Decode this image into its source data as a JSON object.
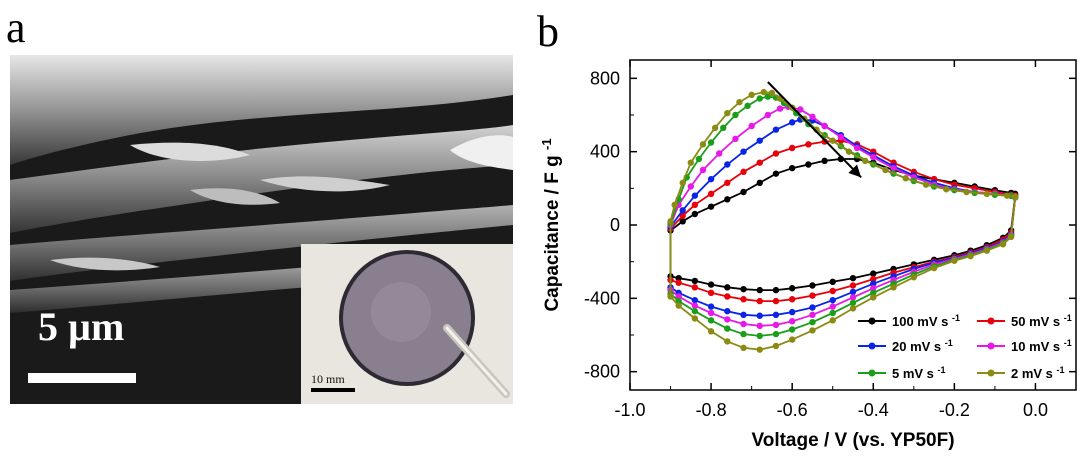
{
  "panel_a": {
    "letter": "a",
    "scale_label": "5 µm",
    "inset_scale_label": "10 mm"
  },
  "panel_b": {
    "letter": "b"
  },
  "chart_data": {
    "type": "line",
    "title": "",
    "xlabel": "Voltage / V (vs. YP50F)",
    "ylabel": "Capacitance / F g",
    "ylabel_superscript": "-1",
    "xlim": [
      -1.0,
      0.1
    ],
    "ylim": [
      -900,
      900
    ],
    "x_ticks": [
      -1.0,
      -0.8,
      -0.6,
      -0.4,
      -0.2,
      0.0
    ],
    "x_tick_labels": [
      "-1.0",
      "-0.8",
      "-0.6",
      "-0.4",
      "-0.2",
      "0.0"
    ],
    "y_ticks": [
      -800,
      -400,
      0,
      400,
      800
    ],
    "y_tick_labels": [
      "-800",
      "-400",
      "0",
      "400",
      "800"
    ],
    "grid": false,
    "legend_position": "bottom-right",
    "arrow": {
      "from": [
        -0.66,
        780
      ],
      "to": [
        -0.43,
        260
      ]
    },
    "series": [
      {
        "name": "100 mV s",
        "sup": "-1",
        "color": "#000000",
        "upper": {
          "x": [
            -0.9,
            -0.87,
            -0.84,
            -0.8,
            -0.76,
            -0.72,
            -0.68,
            -0.64,
            -0.6,
            -0.56,
            -0.52,
            -0.48,
            -0.44,
            -0.4,
            -0.35,
            -0.3,
            -0.25,
            -0.2,
            -0.15,
            -0.1,
            -0.06,
            -0.05
          ],
          "y": [
            -30,
            20,
            60,
            100,
            140,
            180,
            230,
            280,
            310,
            330,
            350,
            360,
            360,
            340,
            300,
            270,
            250,
            230,
            210,
            190,
            175,
            170
          ]
        },
        "lower": {
          "x": [
            -0.05,
            -0.06,
            -0.08,
            -0.12,
            -0.16,
            -0.2,
            -0.25,
            -0.3,
            -0.35,
            -0.4,
            -0.45,
            -0.5,
            -0.55,
            -0.6,
            -0.64,
            -0.68,
            -0.72,
            -0.76,
            -0.8,
            -0.84,
            -0.88,
            -0.9
          ],
          "y": [
            160,
            -30,
            -70,
            -110,
            -140,
            -165,
            -190,
            -215,
            -240,
            -265,
            -290,
            -310,
            -330,
            -345,
            -355,
            -355,
            -350,
            -340,
            -325,
            -305,
            -290,
            -280
          ]
        }
      },
      {
        "name": "50 mV s",
        "sup": "-1",
        "color": "#e8000b",
        "upper": {
          "x": [
            -0.9,
            -0.87,
            -0.84,
            -0.8,
            -0.76,
            -0.72,
            -0.68,
            -0.64,
            -0.6,
            -0.56,
            -0.52,
            -0.48,
            -0.44,
            -0.4,
            -0.35,
            -0.3,
            -0.25,
            -0.2,
            -0.15,
            -0.1,
            -0.06,
            -0.05
          ],
          "y": [
            -20,
            50,
            110,
            170,
            230,
            290,
            340,
            390,
            420,
            440,
            455,
            460,
            440,
            400,
            340,
            290,
            250,
            220,
            200,
            180,
            165,
            160
          ]
        },
        "lower": {
          "x": [
            -0.05,
            -0.06,
            -0.08,
            -0.12,
            -0.16,
            -0.2,
            -0.25,
            -0.3,
            -0.35,
            -0.4,
            -0.45,
            -0.5,
            -0.55,
            -0.6,
            -0.64,
            -0.68,
            -0.72,
            -0.76,
            -0.8,
            -0.84,
            -0.88,
            -0.9
          ],
          "y": [
            160,
            -40,
            -80,
            -120,
            -150,
            -175,
            -200,
            -230,
            -260,
            -295,
            -330,
            -360,
            -385,
            -405,
            -415,
            -415,
            -405,
            -390,
            -370,
            -340,
            -315,
            -300
          ]
        }
      },
      {
        "name": "20 mV s",
        "sup": "-1",
        "color": "#0a24e6",
        "upper": {
          "x": [
            -0.9,
            -0.87,
            -0.84,
            -0.8,
            -0.76,
            -0.72,
            -0.68,
            -0.64,
            -0.6,
            -0.58,
            -0.55,
            -0.52,
            -0.48,
            -0.44,
            -0.4,
            -0.35,
            -0.3,
            -0.25,
            -0.2,
            -0.15,
            -0.1,
            -0.06,
            -0.05
          ],
          "y": [
            -10,
            80,
            160,
            250,
            330,
            400,
            460,
            520,
            560,
            575,
            570,
            540,
            490,
            430,
            380,
            320,
            270,
            230,
            200,
            180,
            170,
            160,
            155
          ]
        },
        "lower": {
          "x": [
            -0.05,
            -0.06,
            -0.08,
            -0.12,
            -0.16,
            -0.2,
            -0.25,
            -0.3,
            -0.35,
            -0.4,
            -0.45,
            -0.5,
            -0.55,
            -0.6,
            -0.64,
            -0.68,
            -0.72,
            -0.76,
            -0.8,
            -0.84,
            -0.88,
            -0.9
          ],
          "y": [
            150,
            -50,
            -90,
            -125,
            -155,
            -180,
            -205,
            -240,
            -280,
            -320,
            -365,
            -410,
            -450,
            -475,
            -490,
            -495,
            -490,
            -470,
            -445,
            -410,
            -370,
            -340
          ]
        }
      },
      {
        "name": "10 mV s",
        "sup": "-1",
        "color": "#e619e6",
        "upper": {
          "x": [
            -0.9,
            -0.88,
            -0.85,
            -0.82,
            -0.78,
            -0.74,
            -0.7,
            -0.66,
            -0.63,
            -0.61,
            -0.58,
            -0.55,
            -0.52,
            -0.48,
            -0.44,
            -0.4,
            -0.35,
            -0.3,
            -0.25,
            -0.2,
            -0.15,
            -0.1,
            -0.06,
            -0.05
          ],
          "y": [
            0,
            110,
            210,
            300,
            390,
            470,
            540,
            600,
            635,
            645,
            630,
            590,
            540,
            480,
            420,
            370,
            310,
            260,
            220,
            195,
            180,
            170,
            160,
            155
          ]
        },
        "lower": {
          "x": [
            -0.05,
            -0.06,
            -0.08,
            -0.12,
            -0.16,
            -0.2,
            -0.25,
            -0.3,
            -0.35,
            -0.4,
            -0.45,
            -0.5,
            -0.55,
            -0.6,
            -0.64,
            -0.68,
            -0.72,
            -0.76,
            -0.8,
            -0.84,
            -0.88,
            -0.9
          ],
          "y": [
            150,
            -55,
            -95,
            -130,
            -160,
            -185,
            -215,
            -255,
            -300,
            -345,
            -395,
            -445,
            -490,
            -525,
            -545,
            -550,
            -540,
            -515,
            -480,
            -440,
            -390,
            -355
          ]
        }
      },
      {
        "name": "5 mV s",
        "sup": "-1",
        "color": "#1a9e1a",
        "upper": {
          "x": [
            -0.9,
            -0.88,
            -0.86,
            -0.83,
            -0.8,
            -0.77,
            -0.74,
            -0.71,
            -0.68,
            -0.66,
            -0.64,
            -0.62,
            -0.59,
            -0.56,
            -0.52,
            -0.48,
            -0.44,
            -0.4,
            -0.35,
            -0.3,
            -0.25,
            -0.2,
            -0.15,
            -0.1,
            -0.06,
            -0.05
          ],
          "y": [
            10,
            140,
            260,
            360,
            450,
            530,
            600,
            650,
            690,
            700,
            695,
            665,
            610,
            550,
            490,
            430,
            380,
            330,
            280,
            240,
            210,
            190,
            175,
            165,
            160,
            155
          ]
        },
        "lower": {
          "x": [
            -0.05,
            -0.06,
            -0.08,
            -0.12,
            -0.16,
            -0.2,
            -0.25,
            -0.3,
            -0.35,
            -0.4,
            -0.45,
            -0.5,
            -0.55,
            -0.6,
            -0.64,
            -0.68,
            -0.72,
            -0.76,
            -0.8,
            -0.84,
            -0.88,
            -0.9
          ],
          "y": [
            150,
            -60,
            -100,
            -135,
            -165,
            -190,
            -225,
            -270,
            -320,
            -370,
            -425,
            -480,
            -530,
            -570,
            -595,
            -605,
            -595,
            -565,
            -520,
            -470,
            -415,
            -375
          ]
        }
      },
      {
        "name": "2 mV s",
        "sup": "-1",
        "color": "#8b8b14",
        "upper": {
          "x": [
            -0.9,
            -0.89,
            -0.87,
            -0.85,
            -0.82,
            -0.79,
            -0.76,
            -0.73,
            -0.7,
            -0.67,
            -0.65,
            -0.63,
            -0.6,
            -0.57,
            -0.54,
            -0.5,
            -0.46,
            -0.42,
            -0.37,
            -0.32,
            -0.27,
            -0.22,
            -0.17,
            -0.12,
            -0.07,
            -0.05
          ],
          "y": [
            20,
            110,
            230,
            340,
            440,
            530,
            610,
            670,
            710,
            725,
            720,
            690,
            640,
            580,
            520,
            460,
            400,
            350,
            300,
            255,
            220,
            195,
            180,
            170,
            160,
            155
          ]
        },
        "lower": {
          "x": [
            -0.05,
            -0.06,
            -0.08,
            -0.12,
            -0.16,
            -0.2,
            -0.25,
            -0.3,
            -0.35,
            -0.4,
            -0.45,
            -0.5,
            -0.55,
            -0.6,
            -0.64,
            -0.68,
            -0.72,
            -0.76,
            -0.8,
            -0.84,
            -0.88,
            -0.9
          ],
          "y": [
            150,
            -65,
            -105,
            -140,
            -170,
            -195,
            -235,
            -285,
            -340,
            -395,
            -455,
            -520,
            -575,
            -625,
            -660,
            -680,
            -670,
            -635,
            -580,
            -510,
            -440,
            -390
          ]
        }
      }
    ]
  }
}
